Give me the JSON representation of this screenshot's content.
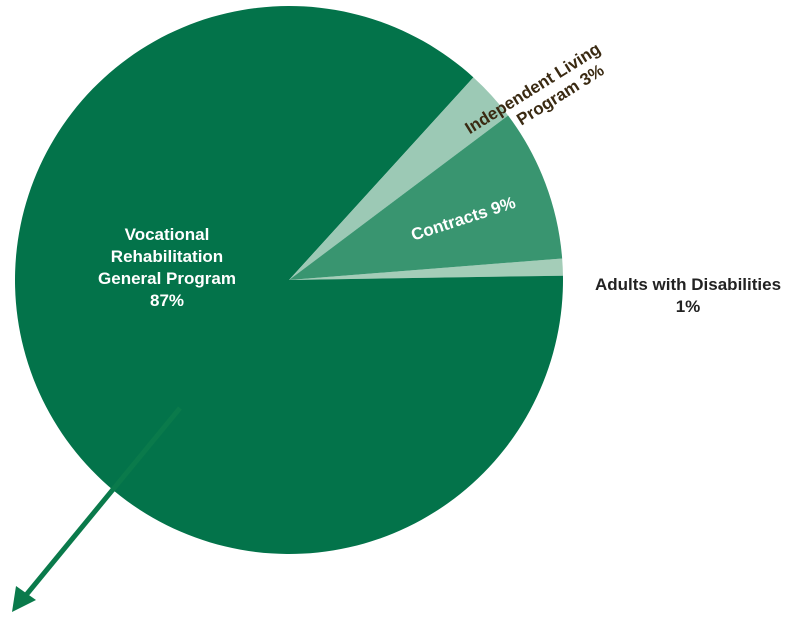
{
  "chart_data": {
    "type": "pie",
    "title": "",
    "slices": [
      {
        "label": "Vocational Rehabilitation General Program",
        "value": 87,
        "display": "87%",
        "color": "#03734a"
      },
      {
        "label": "Adults with Disabilities",
        "value": 1,
        "display": "1%",
        "color": "#a4cdb8"
      },
      {
        "label": "Contracts",
        "value": 9,
        "display": "9%",
        "color": "#399570"
      },
      {
        "label": "Independent Living Program",
        "value": 3,
        "display": "3%",
        "color": "#9cc9b5"
      }
    ]
  },
  "labels": {
    "vr_line1": "Vocational",
    "vr_line2": "Rehabilitation",
    "vr_line3": "General Program",
    "vr_line4": "87%",
    "adults_line1": "Adults with Disabilities",
    "adults_line2": "1%",
    "contracts": "Contracts 9%",
    "il_line1": "Independent Living",
    "il_line2": "Program 3%"
  },
  "colors": {
    "arrow": "#0a7a4b"
  }
}
